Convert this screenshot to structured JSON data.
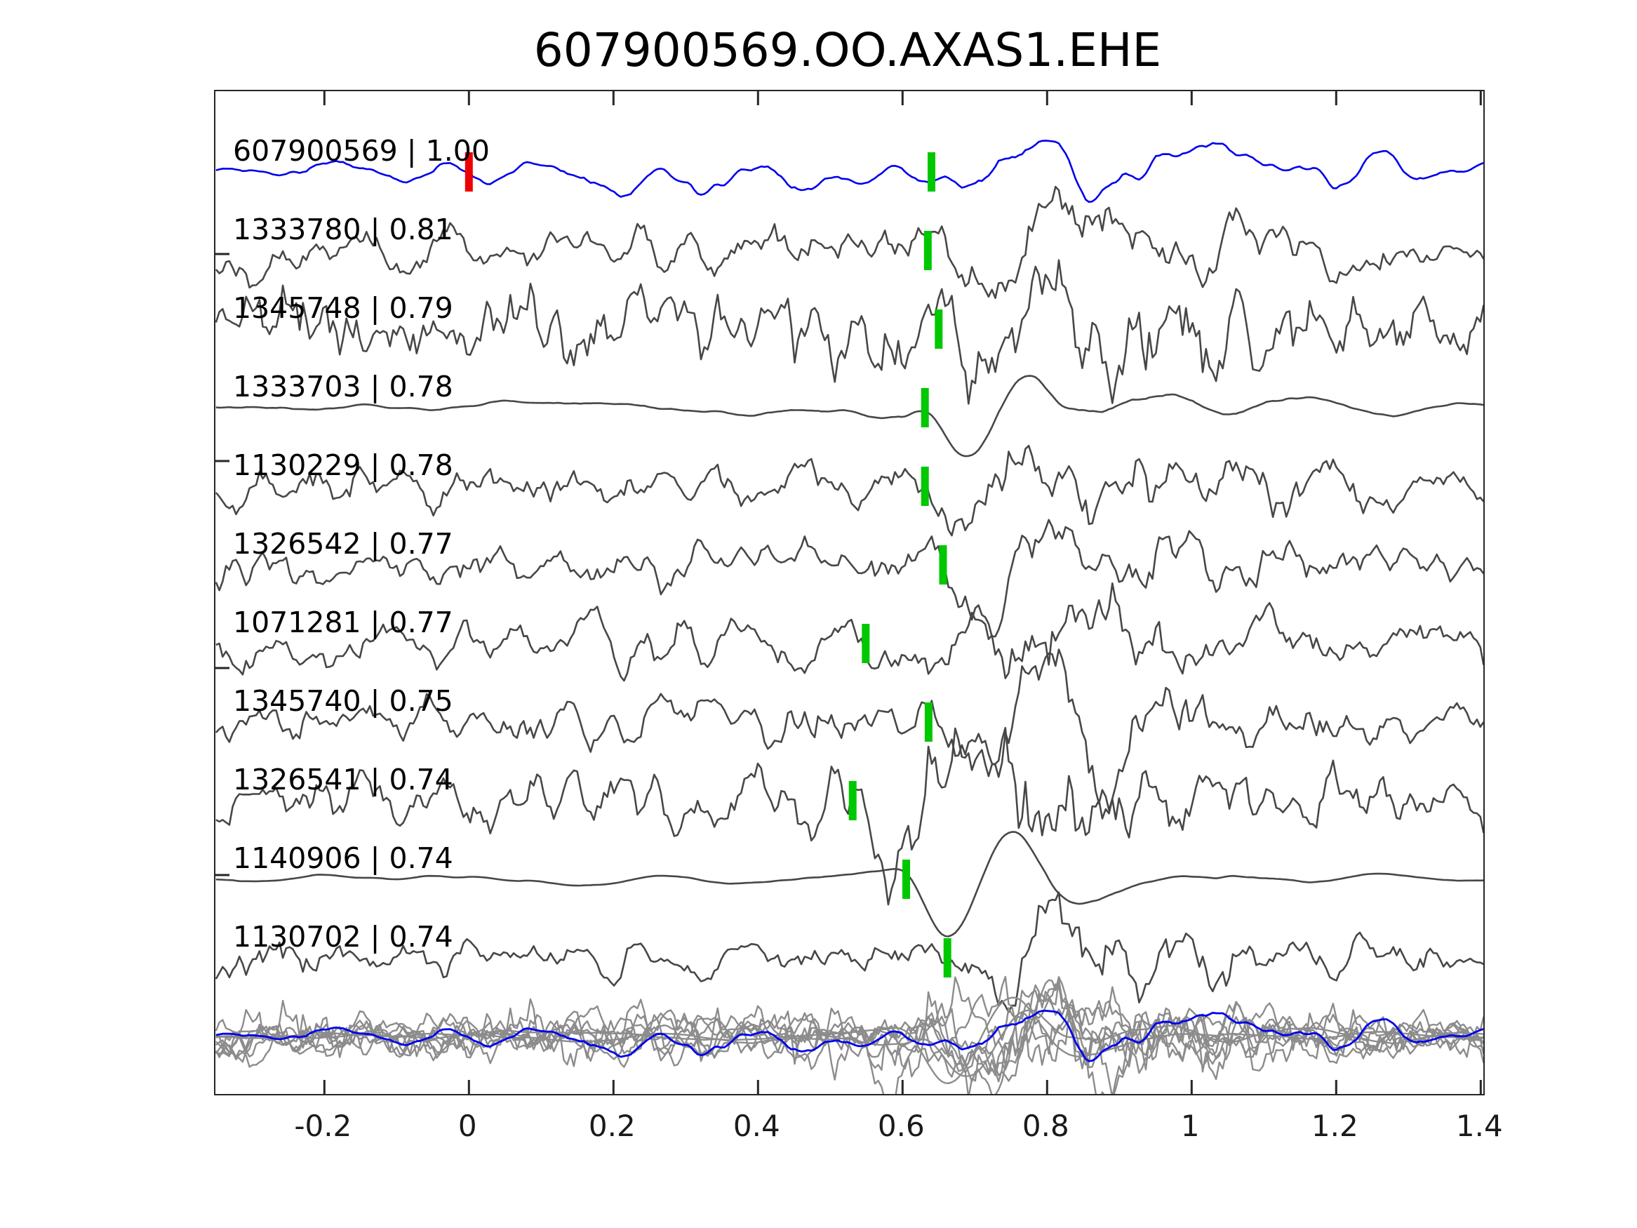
{
  "title": "607900569.OO.AXAS1.EHE",
  "colors": {
    "template_line": "#0000ee",
    "match_line": "#474747",
    "stack_line": "#8c8c8c",
    "pick_marker": "#00c800",
    "template_origin_marker": "#ee0000",
    "axis": "#262626",
    "text": "#000000"
  },
  "chart_data": {
    "type": "line",
    "title": "607900569.OO.AXAS1.EHE",
    "xlabel": "",
    "ylabel": "",
    "xlim": [
      -0.35,
      1.404
    ],
    "x_ticks": [
      -0.2,
      0,
      0.2,
      0.4,
      0.6,
      0.8,
      1,
      1.2,
      1.4
    ],
    "x_tick_labels": [
      "-0.2",
      "0",
      "0.2",
      "0.4",
      "0.6",
      "0.8",
      "1",
      "1.2",
      "1.4"
    ],
    "grid": false,
    "legend": "none",
    "description": "Template-matching waveform panel: template trace (blue) on top, 10 matched event traces (gray) with green pick markers, overlay stack of all traces at bottom.",
    "template_origin_time_s": 0.0,
    "traces": [
      {
        "row": 0,
        "id": "607900569",
        "correlation": "1.00",
        "label_text": "607900569 | 1.00",
        "pick_time_s": 0.64,
        "is_template": true,
        "extra_marker": {
          "time_s": 0.0,
          "color": "red"
        }
      },
      {
        "row": 1,
        "id": "1333780",
        "correlation": "0.81",
        "label_text": "1333780 | 0.81",
        "pick_time_s": 0.635,
        "is_template": false
      },
      {
        "row": 2,
        "id": "1345748",
        "correlation": "0.79",
        "label_text": "1345748 | 0.79",
        "pick_time_s": 0.65,
        "is_template": false
      },
      {
        "row": 3,
        "id": "1333703",
        "correlation": "0.78",
        "label_text": "1333703 | 0.78",
        "pick_time_s": 0.631,
        "is_template": false
      },
      {
        "row": 4,
        "id": "1130229",
        "correlation": "0.78",
        "label_text": "1130229 | 0.78",
        "pick_time_s": 0.631,
        "is_template": false
      },
      {
        "row": 5,
        "id": "1326542",
        "correlation": "0.77",
        "label_text": "1326542 | 0.77",
        "pick_time_s": 0.656,
        "is_template": false
      },
      {
        "row": 6,
        "id": "1071281",
        "correlation": "0.77",
        "label_text": "1071281 | 0.77",
        "pick_time_s": 0.549,
        "is_template": false
      },
      {
        "row": 7,
        "id": "1345740",
        "correlation": "0.75",
        "label_text": "1345740 | 0.75",
        "pick_time_s": 0.636,
        "is_template": false
      },
      {
        "row": 8,
        "id": "1326541",
        "correlation": "0.74",
        "label_text": "1326541 | 0.74",
        "pick_time_s": 0.531,
        "is_template": false
      },
      {
        "row": 9,
        "id": "1140906",
        "correlation": "0.74",
        "label_text": "1140906 | 0.74",
        "pick_time_s": 0.605,
        "is_template": false
      },
      {
        "row": 10,
        "id": "1130702",
        "correlation": "0.74",
        "label_text": "1130702 | 0.74",
        "pick_time_s": 0.662,
        "is_template": false
      }
    ],
    "stack_row": {
      "row": 11,
      "content": "all traces overlaid",
      "gray_color": "#8c8c8c",
      "template_color": "#0000ee"
    },
    "render_hints": {
      "samples": 380,
      "event_period_s": 0.21,
      "trace_params": [
        {
          "seed": 11,
          "noise_amp": 14,
          "smooth": 5,
          "event_amp": 40,
          "ring": 0.4
        },
        {
          "seed": 22,
          "noise_amp": 19,
          "smooth": 3,
          "event_amp": 55,
          "ring": 0.9
        },
        {
          "seed": 33,
          "noise_amp": 26,
          "smooth": 2,
          "event_amp": 34,
          "ring": 0.5
        },
        {
          "seed": 44,
          "noise_amp": 6,
          "smooth": 9,
          "event_amp": 85,
          "ring": 1.4
        },
        {
          "seed": 55,
          "noise_amp": 15,
          "smooth": 3,
          "event_amp": 60,
          "ring": 0.9
        },
        {
          "seed": 66,
          "noise_amp": 14,
          "smooth": 2,
          "event_amp": 78,
          "ring": 0.7
        },
        {
          "seed": 77,
          "noise_amp": 19,
          "smooth": 3,
          "event_amp": 56,
          "ring": 0.9
        },
        {
          "seed": 88,
          "noise_amp": 17,
          "smooth": 3,
          "event_amp": 70,
          "ring": 1.0
        },
        {
          "seed": 99,
          "noise_amp": 21,
          "smooth": 2,
          "event_amp": 48,
          "ring": 1.0
        },
        {
          "seed": 110,
          "noise_amp": 4,
          "smooth": 11,
          "event_amp": 92,
          "ring": 1.6
        },
        {
          "seed": 121,
          "noise_amp": 13,
          "smooth": 3,
          "event_amp": 66,
          "ring": 1.0
        }
      ],
      "stack_scale": 0.82
    }
  }
}
